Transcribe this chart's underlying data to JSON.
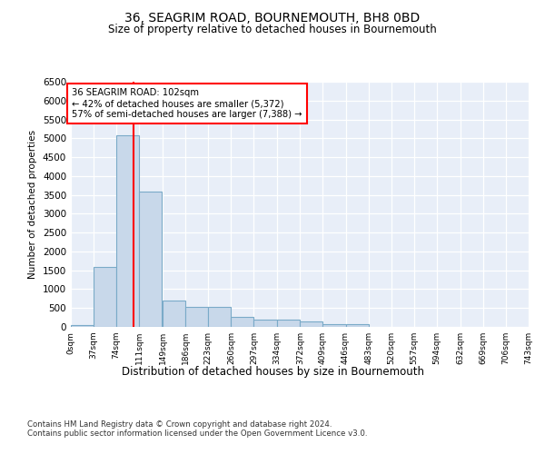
{
  "title": "36, SEAGRIM ROAD, BOURNEMOUTH, BH8 0BD",
  "subtitle": "Size of property relative to detached houses in Bournemouth",
  "xlabel": "Distribution of detached houses by size in Bournemouth",
  "ylabel": "Number of detached properties",
  "footnote1": "Contains HM Land Registry data © Crown copyright and database right 2024.",
  "footnote2": "Contains public sector information licensed under the Open Government Licence v3.0.",
  "bar_color": "#c8d8ea",
  "bar_edge_color": "#7aaac8",
  "bg_color": "#e8eef8",
  "grid_color": "#ffffff",
  "annotation_text": "36 SEAGRIM ROAD: 102sqm\n← 42% of detached houses are smaller (5,372)\n57% of semi-detached houses are larger (7,388) →",
  "property_line_x": 102,
  "ylim": [
    0,
    6500
  ],
  "bin_edges": [
    0,
    37,
    74,
    111,
    149,
    186,
    223,
    260,
    297,
    334,
    372,
    409,
    446,
    483,
    520,
    557,
    594,
    632,
    669,
    706,
    743
  ],
  "bar_heights": [
    40,
    1600,
    5075,
    3575,
    700,
    530,
    530,
    270,
    185,
    185,
    145,
    80,
    80,
    0,
    0,
    0,
    0,
    0,
    0,
    0
  ],
  "tick_labels": [
    "0sqm",
    "37sqm",
    "74sqm",
    "111sqm",
    "149sqm",
    "186sqm",
    "223sqm",
    "260sqm",
    "297sqm",
    "334sqm",
    "372sqm",
    "409sqm",
    "446sqm",
    "483sqm",
    "520sqm",
    "557sqm",
    "594sqm",
    "632sqm",
    "669sqm",
    "706sqm",
    "743sqm"
  ]
}
